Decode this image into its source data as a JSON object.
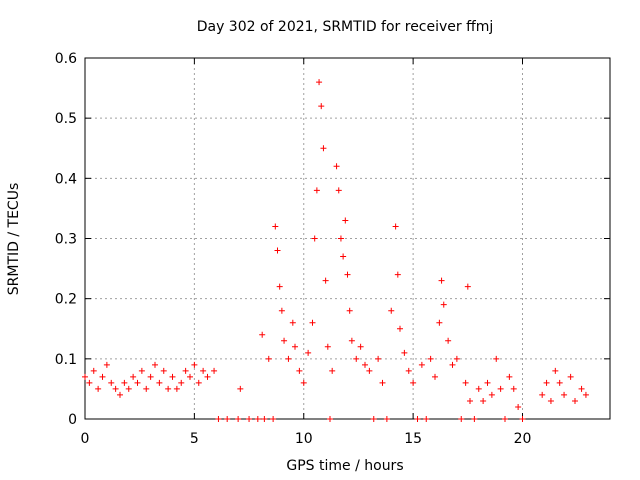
{
  "chart_data": {
    "type": "scatter",
    "title": "Day 302 of 2021, SRMTID for receiver ffmj",
    "xlabel": "GPS time / hours",
    "ylabel": "SRMTID / TECUs",
    "xlim": [
      0,
      24
    ],
    "ylim": [
      0,
      0.6
    ],
    "x_ticks": [
      "0",
      "5",
      "10",
      "15",
      "20"
    ],
    "y_ticks": [
      "0",
      "0.1",
      "0.2",
      "0.3",
      "0.4",
      "0.5",
      "0.6"
    ],
    "grid": true,
    "marker": "+",
    "color": "#ff0000",
    "series": [
      {
        "name": "SRMTID",
        "points": [
          [
            0.0,
            0.07
          ],
          [
            0.2,
            0.06
          ],
          [
            0.4,
            0.08
          ],
          [
            0.6,
            0.05
          ],
          [
            0.8,
            0.07
          ],
          [
            1.0,
            0.09
          ],
          [
            1.2,
            0.06
          ],
          [
            1.4,
            0.05
          ],
          [
            1.6,
            0.04
          ],
          [
            1.8,
            0.06
          ],
          [
            2.0,
            0.05
          ],
          [
            2.2,
            0.07
          ],
          [
            2.4,
            0.06
          ],
          [
            2.6,
            0.08
          ],
          [
            2.8,
            0.05
          ],
          [
            3.0,
            0.07
          ],
          [
            3.2,
            0.09
          ],
          [
            3.4,
            0.06
          ],
          [
            3.6,
            0.08
          ],
          [
            3.8,
            0.05
          ],
          [
            4.0,
            0.07
          ],
          [
            4.2,
            0.05
          ],
          [
            4.4,
            0.06
          ],
          [
            4.6,
            0.08
          ],
          [
            4.8,
            0.07
          ],
          [
            5.0,
            0.09
          ],
          [
            5.2,
            0.06
          ],
          [
            5.4,
            0.08
          ],
          [
            5.6,
            0.07
          ],
          [
            5.9,
            0.08
          ],
          [
            6.1,
            0.0
          ],
          [
            6.5,
            0.0
          ],
          [
            7.0,
            0.0
          ],
          [
            7.1,
            0.05
          ],
          [
            7.5,
            0.0
          ],
          [
            7.9,
            0.0
          ],
          [
            8.2,
            0.0
          ],
          [
            8.1,
            0.14
          ],
          [
            8.4,
            0.1
          ],
          [
            8.6,
            0.0
          ],
          [
            8.7,
            0.32
          ],
          [
            8.8,
            0.28
          ],
          [
            8.9,
            0.22
          ],
          [
            9.0,
            0.18
          ],
          [
            9.1,
            0.13
          ],
          [
            9.3,
            0.1
          ],
          [
            9.5,
            0.16
          ],
          [
            9.6,
            0.12
          ],
          [
            9.8,
            0.08
          ],
          [
            10.0,
            0.06
          ],
          [
            10.2,
            0.11
          ],
          [
            10.4,
            0.16
          ],
          [
            10.5,
            0.3
          ],
          [
            10.6,
            0.38
          ],
          [
            10.7,
            0.56
          ],
          [
            10.8,
            0.52
          ],
          [
            10.9,
            0.45
          ],
          [
            11.0,
            0.23
          ],
          [
            11.1,
            0.12
          ],
          [
            11.2,
            0.0
          ],
          [
            11.3,
            0.08
          ],
          [
            11.5,
            0.42
          ],
          [
            11.6,
            0.38
          ],
          [
            11.7,
            0.3
          ],
          [
            11.8,
            0.27
          ],
          [
            11.9,
            0.33
          ],
          [
            12.0,
            0.24
          ],
          [
            12.1,
            0.18
          ],
          [
            12.2,
            0.13
          ],
          [
            12.4,
            0.1
          ],
          [
            12.6,
            0.12
          ],
          [
            12.8,
            0.09
          ],
          [
            13.0,
            0.08
          ],
          [
            13.2,
            0.0
          ],
          [
            13.4,
            0.1
          ],
          [
            13.6,
            0.06
          ],
          [
            13.8,
            0.0
          ],
          [
            14.0,
            0.18
          ],
          [
            14.2,
            0.32
          ],
          [
            14.3,
            0.24
          ],
          [
            14.4,
            0.15
          ],
          [
            14.6,
            0.11
          ],
          [
            14.8,
            0.08
          ],
          [
            15.0,
            0.06
          ],
          [
            15.2,
            0.0
          ],
          [
            15.4,
            0.09
          ],
          [
            15.6,
            0.0
          ],
          [
            15.8,
            0.1
          ],
          [
            16.0,
            0.07
          ],
          [
            16.2,
            0.16
          ],
          [
            16.3,
            0.23
          ],
          [
            16.4,
            0.19
          ],
          [
            16.6,
            0.13
          ],
          [
            16.8,
            0.09
          ],
          [
            17.0,
            0.1
          ],
          [
            17.2,
            0.0
          ],
          [
            17.4,
            0.06
          ],
          [
            17.5,
            0.22
          ],
          [
            17.6,
            0.03
          ],
          [
            17.8,
            0.0
          ],
          [
            18.0,
            0.05
          ],
          [
            18.2,
            0.03
          ],
          [
            18.4,
            0.06
          ],
          [
            18.6,
            0.04
          ],
          [
            18.8,
            0.1
          ],
          [
            19.0,
            0.05
          ],
          [
            19.2,
            0.0
          ],
          [
            19.4,
            0.07
          ],
          [
            19.6,
            0.05
          ],
          [
            19.8,
            0.02
          ],
          [
            20.0,
            0.0
          ],
          [
            20.9,
            0.04
          ],
          [
            21.1,
            0.06
          ],
          [
            21.3,
            0.03
          ],
          [
            21.5,
            0.08
          ],
          [
            21.7,
            0.06
          ],
          [
            21.9,
            0.04
          ],
          [
            22.2,
            0.07
          ],
          [
            22.4,
            0.03
          ],
          [
            22.7,
            0.05
          ],
          [
            22.9,
            0.04
          ]
        ]
      }
    ]
  }
}
